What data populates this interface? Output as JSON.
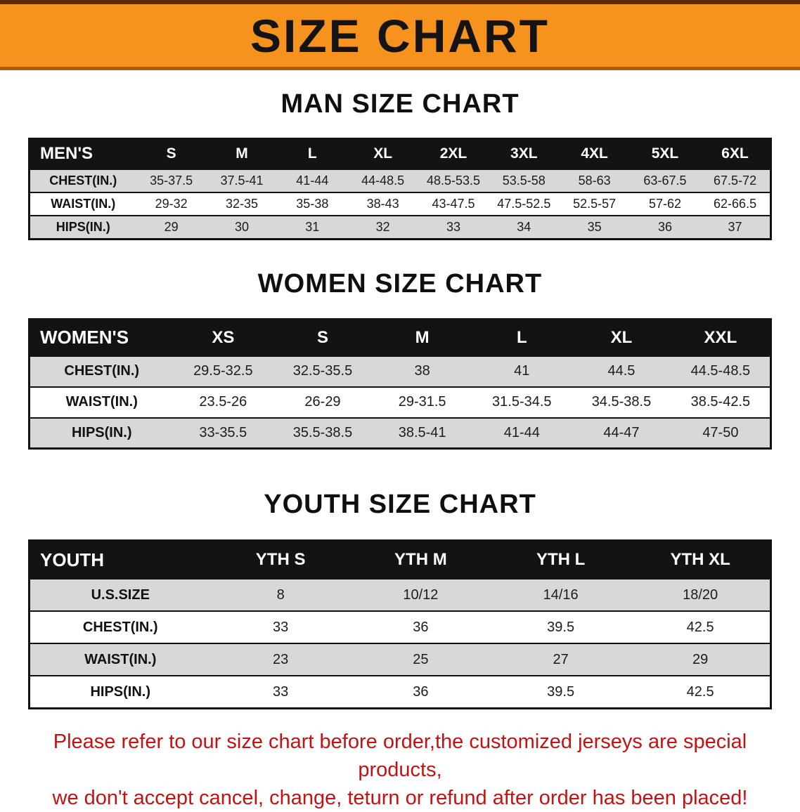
{
  "banner": {
    "title": "SIZE CHART",
    "bg_color": "#f6921e",
    "text_color": "#141414"
  },
  "sections": {
    "men": {
      "heading": "MAN SIZE CHART",
      "table": {
        "corner": "MEN'S",
        "columns": [
          "S",
          "M",
          "L",
          "XL",
          "2XL",
          "3XL",
          "4XL",
          "5XL",
          "6XL"
        ],
        "rows": [
          {
            "label": "CHEST(IN.)",
            "values": [
              "35-37.5",
              "37.5-41",
              "41-44",
              "44-48.5",
              "48.5-53.5",
              "53.5-58",
              "58-63",
              "63-67.5",
              "67.5-72"
            ]
          },
          {
            "label": "WAIST(IN.)",
            "values": [
              "29-32",
              "32-35",
              "35-38",
              "38-43",
              "43-47.5",
              "47.5-52.5",
              "52.5-57",
              "57-62",
              "62-66.5"
            ]
          },
          {
            "label": "HIPS(IN.)",
            "values": [
              "29",
              "30",
              "31",
              "32",
              "33",
              "34",
              "35",
              "36",
              "37"
            ]
          }
        ]
      }
    },
    "women": {
      "heading": "WOMEN SIZE CHART",
      "table": {
        "corner": "WOMEN'S",
        "columns": [
          "XS",
          "S",
          "M",
          "L",
          "XL",
          "XXL"
        ],
        "rows": [
          {
            "label": "CHEST(IN.)",
            "values": [
              "29.5-32.5",
              "32.5-35.5",
              "38",
              "41",
              "44.5",
              "44.5-48.5"
            ]
          },
          {
            "label": "WAIST(IN.)",
            "values": [
              "23.5-26",
              "26-29",
              "29-31.5",
              "31.5-34.5",
              "34.5-38.5",
              "38.5-42.5"
            ]
          },
          {
            "label": "HIPS(IN.)",
            "values": [
              "33-35.5",
              "35.5-38.5",
              "38.5-41",
              "41-44",
              "44-47",
              "47-50"
            ]
          }
        ]
      }
    },
    "youth": {
      "heading": "YOUTH SIZE CHART",
      "table": {
        "corner": "YOUTH",
        "columns": [
          "YTH S",
          "YTH M",
          "YTH L",
          "YTH XL"
        ],
        "rows": [
          {
            "label": "U.S.SIZE",
            "values": [
              "8",
              "10/12",
              "14/16",
              "18/20"
            ]
          },
          {
            "label": "CHEST(IN.)",
            "values": [
              "33",
              "36",
              "39.5",
              "42.5"
            ]
          },
          {
            "label": "WAIST(IN.)",
            "values": [
              "23",
              "25",
              "27",
              "29"
            ]
          },
          {
            "label": "HIPS(IN.)",
            "values": [
              "33",
              "36",
              "39.5",
              "42.5"
            ]
          }
        ]
      }
    }
  },
  "footer": {
    "line1": "Please refer to our size chart before order,the customized jerseys are special products,",
    "line2": "we don't accept cancel, change, teturn or refund after order has been placed!"
  }
}
